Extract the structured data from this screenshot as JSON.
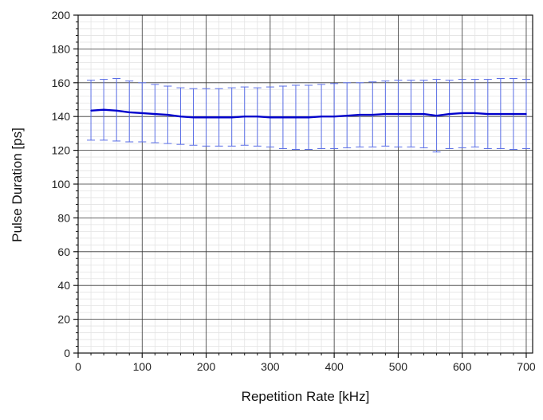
{
  "chart_data": {
    "type": "line",
    "title": "",
    "xlabel": "Repetition Rate [kHz]",
    "ylabel": "Pulse Duration [ps]",
    "xlim": [
      0,
      710
    ],
    "ylim": [
      0,
      200
    ],
    "x_ticks": [
      0,
      100,
      200,
      300,
      400,
      500,
      600,
      700
    ],
    "y_ticks": [
      0,
      20,
      40,
      60,
      80,
      100,
      120,
      140,
      160,
      180,
      200
    ],
    "x_tick_labels": [
      "0",
      "100",
      "200",
      "300",
      "400",
      "500",
      "600",
      "700"
    ],
    "y_tick_labels": [
      "0",
      "20",
      "40",
      "60",
      "80",
      "100",
      "120",
      "140",
      "160",
      "180",
      "200"
    ],
    "grid": true,
    "minor_grid": true,
    "legend": "none",
    "series": [
      {
        "color": "#0000cc",
        "error_bar_color": "#5a6ee6",
        "x": [
          20,
          40,
          60,
          80,
          100,
          120,
          140,
          160,
          180,
          200,
          220,
          240,
          260,
          280,
          300,
          320,
          340,
          360,
          380,
          400,
          420,
          440,
          460,
          480,
          500,
          520,
          540,
          560,
          580,
          600,
          620,
          640,
          660,
          680,
          700
        ],
        "y": [
          143.5,
          144,
          143.5,
          142.5,
          142,
          141.5,
          141,
          140,
          139.5,
          139.5,
          139.5,
          139.5,
          140,
          140,
          139.5,
          139.5,
          139.5,
          139.5,
          140,
          140,
          140.5,
          141,
          141,
          141.5,
          141.5,
          141.5,
          141.5,
          140.5,
          141.5,
          142,
          142,
          141.5,
          141.5,
          141.5,
          141.5
        ],
        "error_low": [
          126,
          126,
          125.5,
          125,
          125,
          124.5,
          124,
          123.5,
          123,
          122.5,
          122.5,
          122.5,
          123,
          122.5,
          122,
          121,
          120.5,
          120.5,
          121,
          121,
          121.5,
          122,
          122,
          122.5,
          122,
          122,
          121.5,
          119,
          121,
          121.5,
          122,
          121,
          121,
          120.5,
          121
        ],
        "error_high": [
          161.5,
          162,
          162.5,
          161,
          160,
          159,
          158,
          157,
          156.5,
          156.5,
          156.5,
          157,
          157.5,
          157,
          157.5,
          158,
          158.5,
          158.5,
          159,
          159.5,
          160,
          160,
          160.5,
          161,
          161.5,
          161.5,
          161.5,
          162,
          161.5,
          162,
          162,
          162,
          162.5,
          162.5,
          162
        ]
      }
    ]
  }
}
